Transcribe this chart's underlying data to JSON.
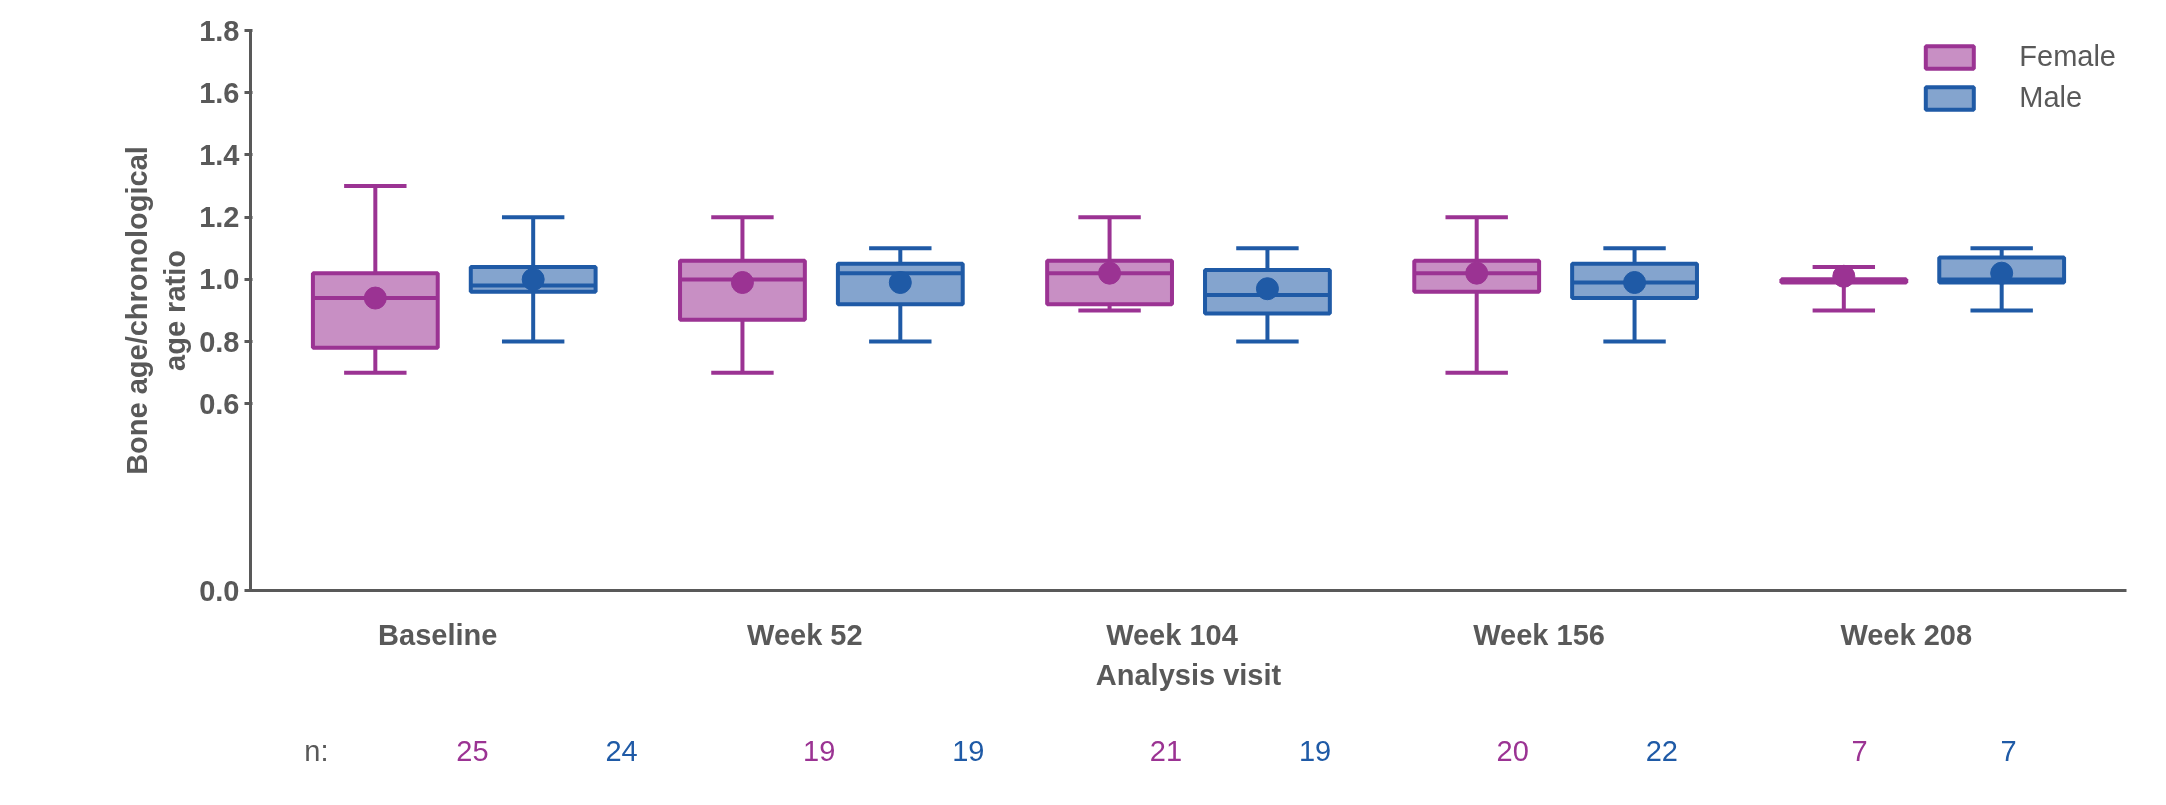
{
  "chart_data": {
    "type": "box",
    "xlabel": "Analysis visit",
    "ylabel": "Bone age/chronological\nage ratio",
    "categories": [
      "Baseline",
      "Week 52",
      "Week 104",
      "Week 156",
      "Week 208"
    ],
    "ylim": [
      0.0,
      1.8
    ],
    "yticks": [
      {
        "value": 0.0,
        "label": "0.0"
      },
      {
        "value": 0.6,
        "label": "0.6"
      },
      {
        "value": 0.8,
        "label": "0.8"
      },
      {
        "value": 1.0,
        "label": "1.0"
      },
      {
        "value": 1.2,
        "label": "1.2"
      },
      {
        "value": 1.4,
        "label": "1.4"
      },
      {
        "value": 1.6,
        "label": "1.6"
      },
      {
        "value": 1.8,
        "label": "1.8"
      }
    ],
    "legend": "top right",
    "grid": false,
    "marker": "circle",
    "series": [
      {
        "name": "Female",
        "color": "#9b3393",
        "boxes": [
          {
            "low": 0.7,
            "q1": 0.78,
            "median": 0.94,
            "q3": 1.02,
            "high": 1.3,
            "mean": 0.94
          },
          {
            "low": 0.7,
            "q1": 0.87,
            "median": 1.0,
            "q3": 1.06,
            "high": 1.2,
            "mean": 0.99
          },
          {
            "low": 0.9,
            "q1": 0.92,
            "median": 1.02,
            "q3": 1.06,
            "high": 1.2,
            "mean": 1.02
          },
          {
            "low": 0.7,
            "q1": 0.96,
            "median": 1.02,
            "q3": 1.06,
            "high": 1.2,
            "mean": 1.02
          },
          {
            "low": 0.9,
            "q1": 0.99,
            "median": 1.0,
            "q3": 1.0,
            "high": 1.04,
            "mean": 1.01
          }
        ]
      },
      {
        "name": "Male",
        "color": "#1f5aa6",
        "boxes": [
          {
            "low": 0.8,
            "q1": 0.96,
            "median": 0.98,
            "q3": 1.04,
            "high": 1.2,
            "mean": 1.0
          },
          {
            "low": 0.8,
            "q1": 0.92,
            "median": 1.02,
            "q3": 1.05,
            "high": 1.1,
            "mean": 0.99
          },
          {
            "low": 0.8,
            "q1": 0.89,
            "median": 0.95,
            "q3": 1.03,
            "high": 1.1,
            "mean": 0.97
          },
          {
            "low": 0.8,
            "q1": 0.94,
            "median": 0.99,
            "q3": 1.05,
            "high": 1.1,
            "mean": 0.99
          },
          {
            "low": 0.9,
            "q1": 0.99,
            "median": 1.0,
            "q3": 1.07,
            "high": 1.1,
            "mean": 1.02
          }
        ]
      }
    ],
    "annotations": [
      "n:",
      "25",
      "24",
      "19",
      "19",
      "21",
      "19",
      "20",
      "22",
      "7",
      "7"
    ]
  }
}
